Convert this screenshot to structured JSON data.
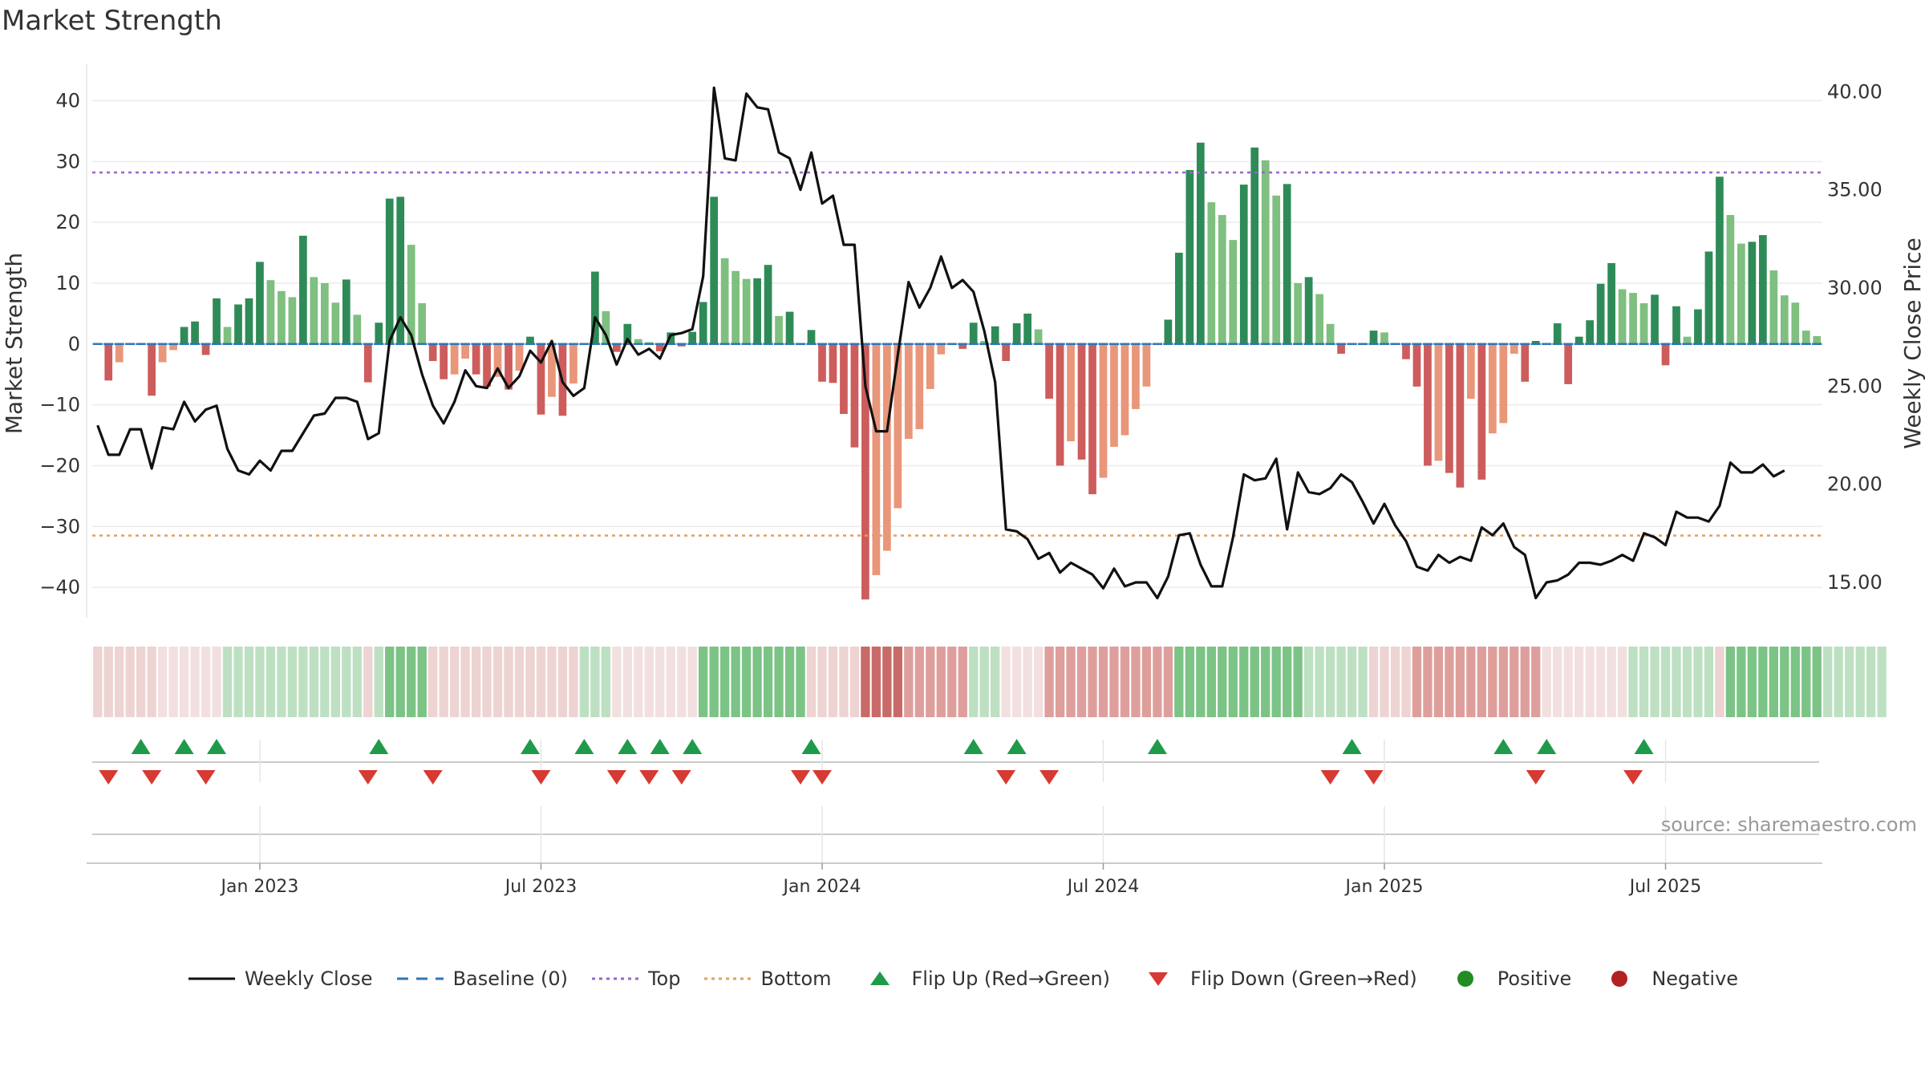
{
  "chart": {
    "title": "Market Strength",
    "source": "source: sharemaestro.com"
  },
  "legend": [
    {
      "label": "Weekly Close",
      "kind": "line",
      "color": "#111111"
    },
    {
      "label": "Baseline (0)",
      "kind": "dash",
      "color": "#2e75b6"
    },
    {
      "label": "Top",
      "kind": "dot",
      "color": "#9966cc"
    },
    {
      "label": "Bottom",
      "kind": "dot",
      "color": "#e0a060"
    },
    {
      "label": "Flip Up (Red→Green)",
      "kind": "tri-up",
      "color": "#1e9a4a"
    },
    {
      "label": "Flip Down (Green→Red)",
      "kind": "tri-down",
      "color": "#d63a32"
    },
    {
      "label": "Positive",
      "kind": "circle",
      "color": "#228b22"
    },
    {
      "label": "Negative",
      "kind": "circle",
      "color": "#b22222"
    }
  ],
  "colors": {
    "strong_pos": "#2e8b57",
    "weak_pos": "#7fbf7f",
    "strong_neg": "#cd5c5c",
    "weak_neg": "#e9967a",
    "price_line": "#111111",
    "baseline": "#2e75b6",
    "top_line": "#9966cc",
    "bottom_line": "#e0a060"
  },
  "chart_data": {
    "type": "bar",
    "ylabel": "Market Strength",
    "y2label": "Weekly Close Price",
    "ylim": [
      -45,
      46
    ],
    "y2lim": [
      13.2,
      41.4
    ],
    "yticks": [
      40,
      30,
      20,
      10,
      0,
      -10,
      -20,
      -30,
      -40
    ],
    "ytick_labels": [
      "40",
      "30",
      "20",
      "10",
      "0",
      "−10",
      "−20",
      "−30",
      "−40"
    ],
    "y2ticks": [
      40,
      35,
      30,
      25,
      20,
      15
    ],
    "y2tick_labels": [
      "40.00",
      "35.00",
      "30.00",
      "25.00",
      "20.00",
      "15.00"
    ],
    "x_dates_note": "weekly",
    "x_ticks": [
      {
        "label": "Jan 2023",
        "week": 15
      },
      {
        "label": "Jul 2023",
        "week": 41
      },
      {
        "label": "Jan 2024",
        "week": 67
      },
      {
        "label": "Jul 2024",
        "week": 93
      },
      {
        "label": "Jan 2025",
        "week": 119
      },
      {
        "label": "Jul 2025",
        "week": 145
      }
    ],
    "top_level": 28.2,
    "bottom_level": -31.5,
    "strength": [
      0,
      -6,
      -3,
      0,
      0,
      -8.5,
      -3,
      -1,
      2.8,
      3.7,
      -1.8,
      7.5,
      2.8,
      6.5,
      7.5,
      13.5,
      10.5,
      8.7,
      7.7,
      17.8,
      11,
      10,
      6.8,
      10.6,
      4.8,
      -6.3,
      3.5,
      23.9,
      24.2,
      16.3,
      6.7,
      -2.8,
      -5.8,
      -5,
      -2.4,
      -5,
      -7,
      -5.4,
      -7.5,
      -4.4,
      1.2,
      -11.6,
      -8.7,
      -11.8,
      -6.5,
      0,
      11.9,
      5.4,
      -1.3,
      3.3,
      0.8,
      0.3,
      -1.2,
      1.9,
      -0.4,
      2,
      6.9,
      24.2,
      14.1,
      12,
      10.7,
      10.8,
      13,
      4.6,
      5.3,
      0,
      2.3,
      -6.2,
      -6.4,
      -11.5,
      -17,
      -42,
      -38,
      -34,
      -27,
      -15.6,
      -14,
      -7.4,
      -1.7,
      0,
      -0.8,
      3.5,
      0.5,
      2.9,
      -2.8,
      3.4,
      5,
      2.4,
      -9,
      -20,
      -16,
      -19,
      -24.7,
      -22,
      -16.9,
      -15,
      -10.7,
      -7,
      0,
      4,
      15,
      28.6,
      33.1,
      23.3,
      21.2,
      17.1,
      26.2,
      32.3,
      30.2,
      24.4,
      26.3,
      10,
      11,
      8.2,
      3.3,
      -1.6,
      0,
      0,
      2.2,
      1.9,
      0,
      -2.5,
      -7,
      -20,
      -19.2,
      -21.2,
      -23.6,
      -9,
      -22.3,
      -14.7,
      -13,
      -1.6,
      -6.2,
      0.5,
      0,
      3.4,
      -6.6,
      1.2,
      3.9,
      9.9,
      13.3,
      9,
      8.4,
      6.7,
      8.1,
      -3.5,
      6.2,
      1.2,
      5.7,
      15.2,
      27.5,
      21.2,
      16.5,
      16.8,
      17.9,
      12.1,
      8,
      6.8,
      2.2,
      1.3
    ],
    "weekly_close": [
      23,
      21.5,
      21.5,
      22.8,
      22.8,
      20.8,
      22.9,
      22.8,
      24.2,
      23.2,
      23.8,
      24,
      21.8,
      20.7,
      20.5,
      21.2,
      20.7,
      21.7,
      21.7,
      22.6,
      23.5,
      23.6,
      24.4,
      24.4,
      24.2,
      22.3,
      22.6,
      27.3,
      28.5,
      27.6,
      25.6,
      24,
      23.1,
      24.2,
      25.8,
      25,
      24.9,
      25.9,
      24.9,
      25.5,
      26.8,
      26.2,
      27.3,
      25.2,
      24.5,
      24.9,
      28.5,
      27.6,
      26.1,
      27.4,
      26.6,
      26.9,
      26.4,
      27.6,
      27.7,
      27.9,
      30.6,
      40.2,
      36.6,
      36.5,
      39.9,
      39.2,
      39.1,
      36.9,
      36.6,
      35,
      36.9,
      34.3,
      34.7,
      32.2,
      32.2,
      25,
      22.7,
      22.7,
      26.6,
      30.3,
      29,
      30,
      31.6,
      30,
      30.4,
      29.8,
      27.8,
      25.2,
      17.7,
      17.6,
      17.2,
      16.2,
      16.5,
      15.5,
      16,
      15.7,
      15.4,
      14.7,
      15.7,
      14.8,
      15,
      15,
      14.2,
      15.3,
      17.4,
      17.5,
      15.9,
      14.8,
      14.8,
      17.3,
      20.5,
      20.2,
      20.3,
      21.3,
      17.7,
      20.6,
      19.6,
      19.5,
      19.8,
      20.5,
      20.1,
      19.1,
      18,
      19,
      17.9,
      17.1,
      15.8,
      15.6,
      16.4,
      16,
      16.3,
      16.1,
      17.8,
      17.4,
      18,
      16.8,
      16.4,
      14.2,
      15,
      15.1,
      15.4,
      16,
      16,
      15.9,
      16.1,
      16.4,
      16.1,
      17.5,
      17.3,
      16.9,
      18.6,
      18.3,
      18.3,
      18.1,
      18.9,
      21.1,
      20.6,
      20.6,
      21,
      20.4,
      20.7
    ],
    "regime_shade": [
      2,
      2,
      2,
      2,
      2,
      2,
      1,
      1,
      1,
      1,
      1,
      1,
      0,
      0,
      0,
      0,
      0,
      0,
      0,
      0,
      0,
      0,
      0,
      0,
      0,
      2,
      0,
      -1,
      -1,
      -1,
      -1,
      2,
      2,
      2,
      2,
      2,
      2,
      2,
      2,
      2,
      2,
      2,
      2,
      2,
      2,
      0,
      0,
      0,
      1,
      1,
      1,
      1,
      1,
      1,
      1,
      1,
      -1,
      -1,
      -1,
      -1,
      -1,
      -1,
      -1,
      -1,
      -1,
      -1,
      2,
      2,
      2,
      2,
      2,
      -2,
      -2,
      -2,
      -2,
      3,
      3,
      3,
      3,
      3,
      3,
      0,
      0,
      0,
      1,
      1,
      1,
      1,
      3,
      3,
      3,
      3,
      3,
      3,
      3,
      3,
      3,
      3,
      3,
      3,
      -1,
      -1,
      -1,
      -1,
      -1,
      -1,
      -1,
      -1,
      -1,
      -1,
      -1,
      -1,
      0,
      0,
      0,
      0,
      0,
      0,
      2,
      2,
      2,
      2,
      3,
      3,
      3,
      3,
      3,
      3,
      3,
      3,
      3,
      3,
      3,
      3,
      1,
      1,
      1,
      1,
      1,
      1,
      1,
      1,
      0,
      0,
      0,
      0,
      0,
      0,
      0,
      0,
      2,
      -1,
      -1,
      -1,
      -1,
      -1,
      -1,
      -1,
      -1,
      -1,
      0,
      0,
      0,
      0,
      0,
      0
    ],
    "flip_up_weeks": [
      4,
      8,
      11,
      26,
      40,
      45,
      49,
      52,
      55,
      66,
      81,
      85,
      98,
      116,
      130,
      134,
      143
    ],
    "flip_down_weeks": [
      1,
      5,
      10,
      25,
      31,
      41,
      48,
      51,
      54,
      65,
      67,
      84,
      88,
      114,
      118,
      133,
      142
    ]
  }
}
